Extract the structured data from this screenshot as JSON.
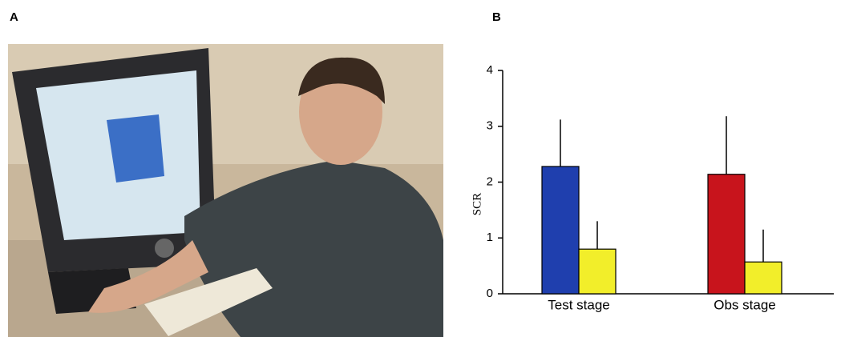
{
  "panel_labels": [
    "A",
    "B"
  ],
  "chart_data": {
    "type": "bar",
    "ylabel": "SCR",
    "categories": [
      "Test stage",
      "Obs stage"
    ],
    "series": [
      {
        "colors": [
          "#1f3fae",
          "#c8141c"
        ],
        "values": [
          2.28,
          2.14
        ],
        "errors": [
          0.84,
          1.04
        ]
      },
      {
        "colors": [
          "#f2ee2a",
          "#f2ee2a"
        ],
        "values": [
          0.8,
          0.57
        ],
        "errors": [
          0.5,
          0.58
        ]
      }
    ],
    "ylim": [
      0,
      4
    ],
    "yticks": [
      0,
      1,
      2,
      3,
      4
    ]
  }
}
